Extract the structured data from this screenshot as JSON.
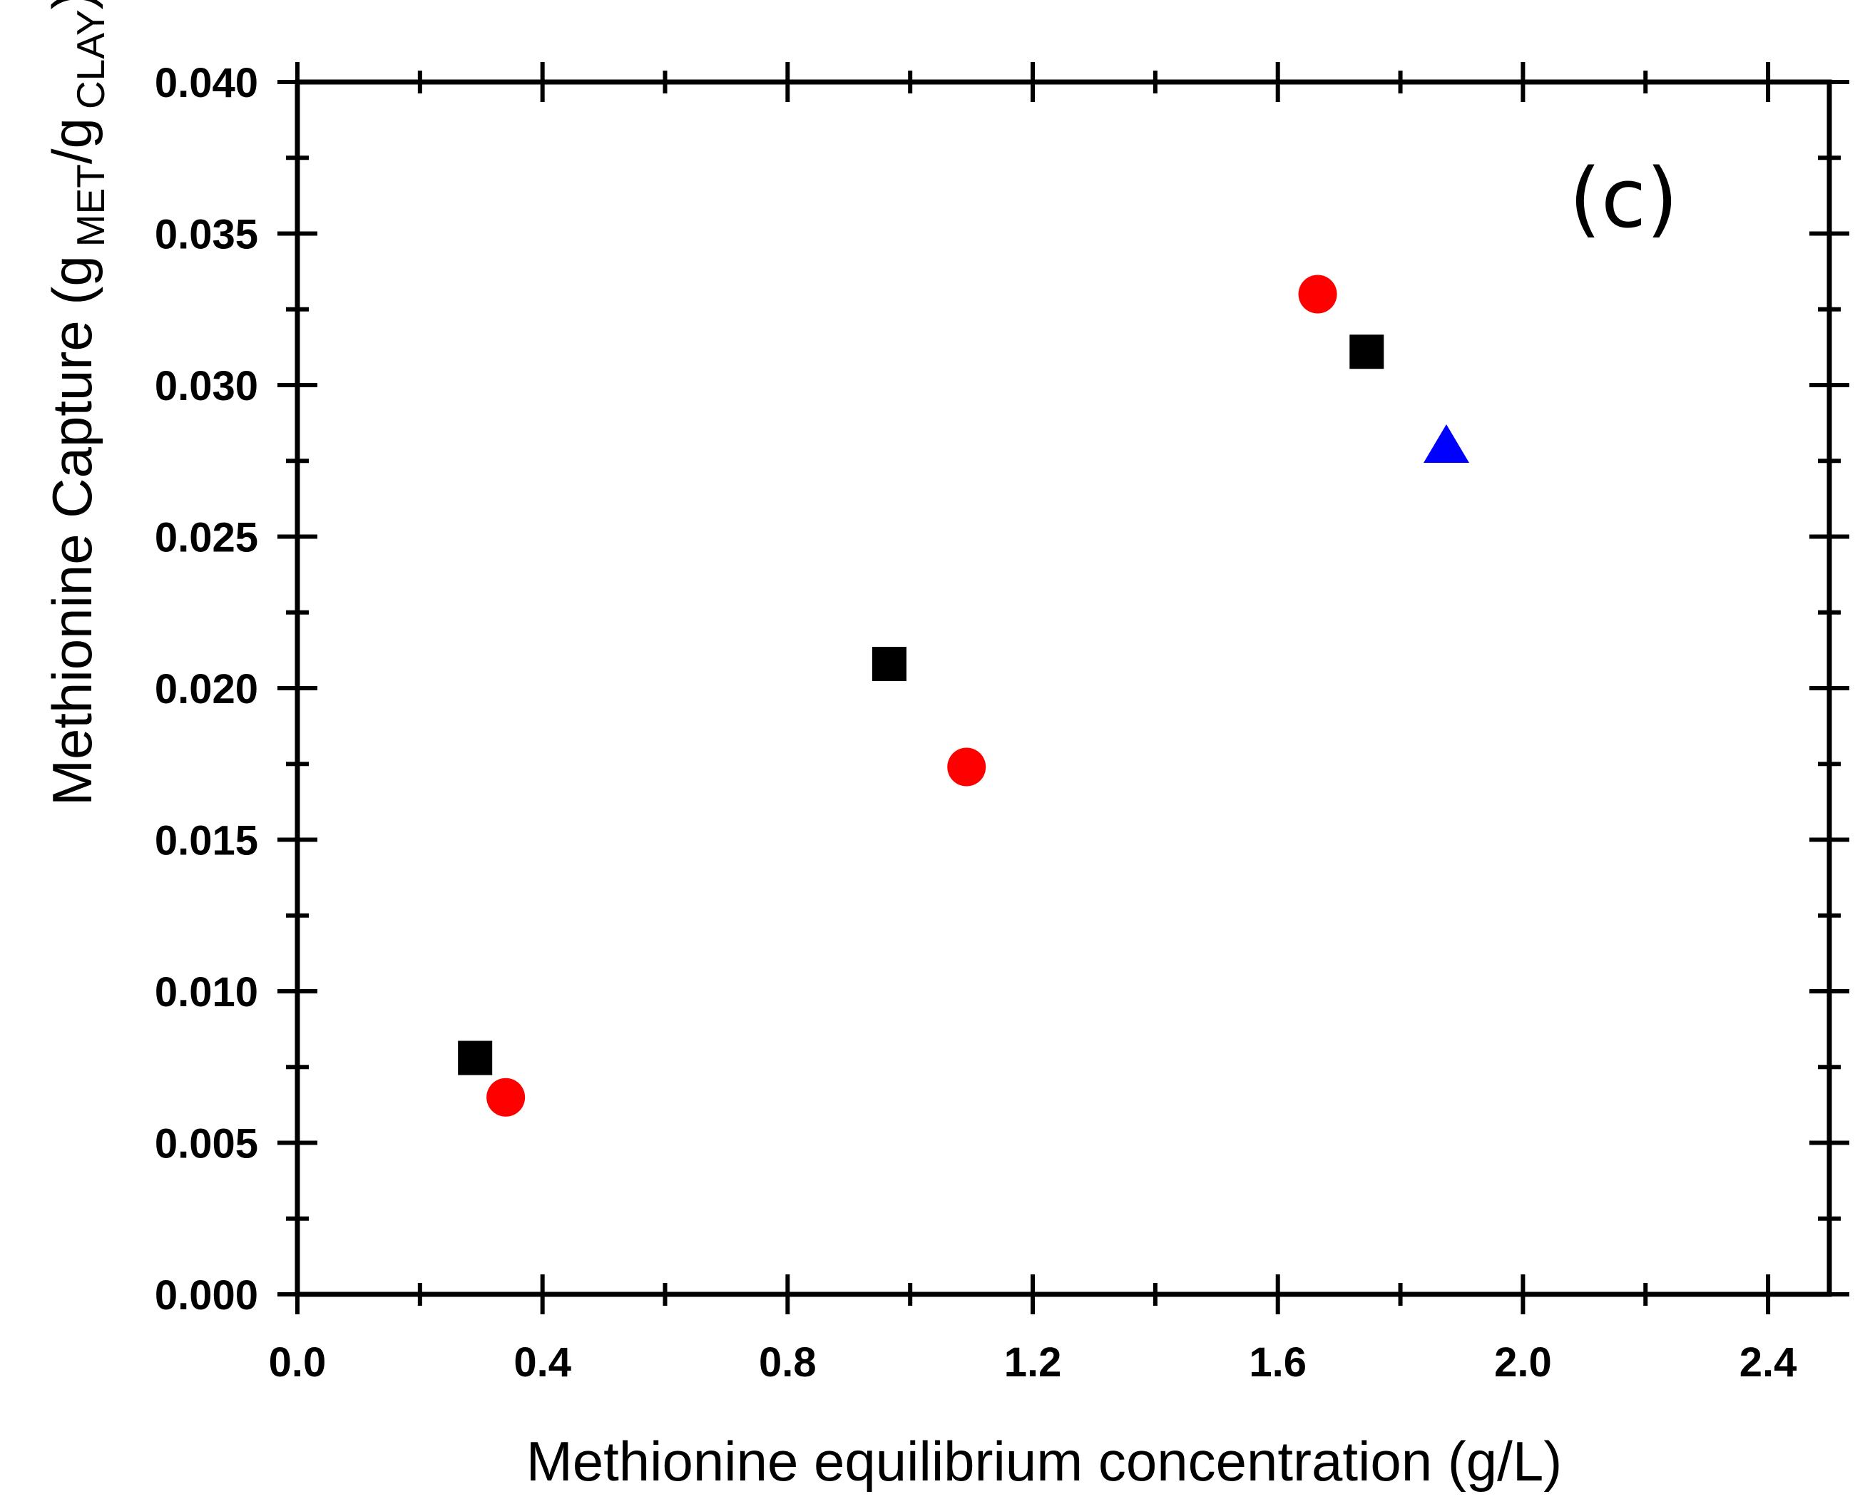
{
  "chart_data": {
    "type": "scatter",
    "panel_label": "(c)",
    "xlabel": "Methionine equilibrium concentration (g/L)",
    "ylabel": {
      "prefix": "Methionine Capture (g",
      "sub1": "MET",
      "middle": "/g",
      "sub2": "CLAY",
      "suffix": ")"
    },
    "xlim": [
      0.0,
      2.5
    ],
    "ylim": [
      0.0,
      0.04
    ],
    "x_ticks": [
      0.0,
      0.4,
      0.8,
      1.2,
      1.6,
      2.0,
      2.4
    ],
    "x_tick_labels": [
      "0.0",
      "0.4",
      "0.8",
      "1.2",
      "1.6",
      "2.0",
      "2.4"
    ],
    "y_ticks": [
      0.0,
      0.005,
      0.01,
      0.015,
      0.02,
      0.025,
      0.03,
      0.035,
      0.04
    ],
    "y_tick_labels": [
      "0.000",
      "0.005",
      "0.010",
      "0.015",
      "0.020",
      "0.025",
      "0.030",
      "0.035",
      "0.040"
    ],
    "grid": false,
    "series": [
      {
        "name": "black squares",
        "marker": "square",
        "color": "#000000",
        "points": [
          [
            0.29,
            0.0078
          ],
          [
            0.966,
            0.0208
          ],
          [
            1.745,
            0.0311
          ]
        ]
      },
      {
        "name": "red circles",
        "marker": "circle",
        "color": "#ff0000",
        "points": [
          [
            0.34,
            0.0065
          ],
          [
            1.092,
            0.0174
          ],
          [
            1.665,
            0.033
          ]
        ]
      },
      {
        "name": "blue triangles",
        "marker": "triangle",
        "color": "#0000ff",
        "points": [
          [
            1.875,
            0.028
          ]
        ]
      }
    ]
  }
}
